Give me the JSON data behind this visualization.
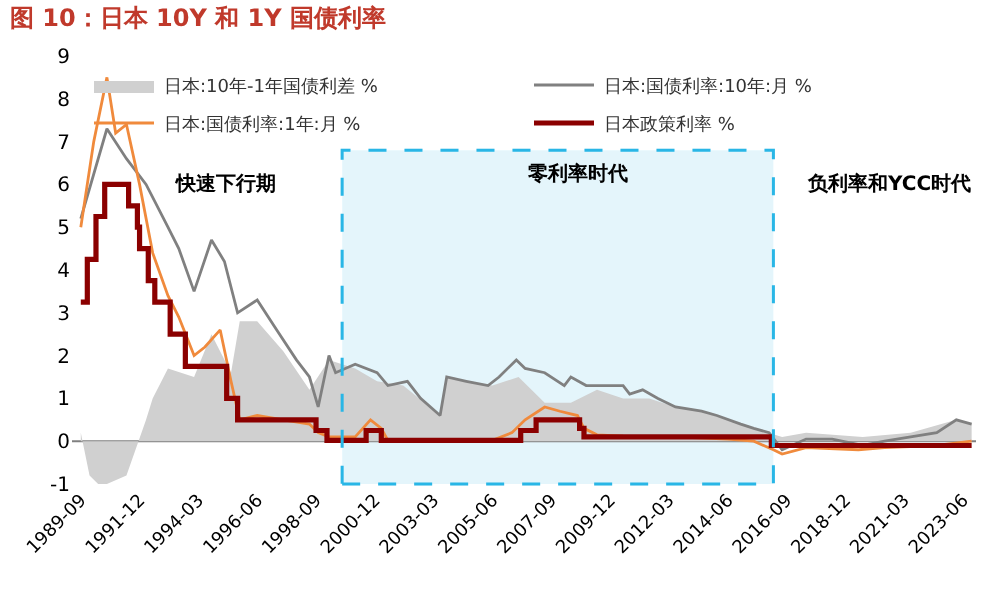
{
  "chart_data": {
    "type": "line",
    "title": "图 10：日本 10Y 和 1Y 国债利率",
    "series": [
      {
        "name": "日本:10年-1年国债利差 %",
        "type": "area",
        "color": "#d0d0d0",
        "x": [
          "1989-09",
          "1990-01",
          "1990-05",
          "1990-09",
          "1991-06",
          "1992-03",
          "1992-06",
          "1993-01",
          "1994-01",
          "1994-09",
          "1995-06",
          "1995-10",
          "1996-06",
          "1997-06",
          "1998-06",
          "1999-03",
          "2000-03",
          "2001-01",
          "2002-01",
          "2003-06",
          "2003-09",
          "2004-06",
          "2005-06",
          "2006-06",
          "2007-06",
          "2008-06",
          "2009-06",
          "2010-06",
          "2011-06",
          "2012-06",
          "2013-06",
          "2014-06",
          "2015-06",
          "2016-07",
          "2017-06",
          "2019-08",
          "2021-06",
          "2023-03",
          "2023-10"
        ],
        "values": [
          0.2,
          -0.8,
          -1.0,
          -1.0,
          -0.8,
          0.5,
          1.0,
          1.7,
          1.5,
          2.5,
          1.6,
          2.8,
          2.8,
          2.1,
          1.2,
          1.9,
          1.7,
          1.4,
          1.3,
          0.6,
          1.5,
          1.4,
          1.3,
          1.5,
          0.9,
          0.9,
          1.2,
          1.0,
          1.0,
          0.8,
          0.7,
          0.5,
          0.3,
          0.1,
          0.2,
          0.1,
          0.2,
          0.5,
          0.4
        ]
      },
      {
        "name": "日本:国债利率:10年:月 %",
        "color": "#808080",
        "x": [
          "1989-09",
          "1990-09",
          "1991-06",
          "1992-03",
          "1993-01",
          "1993-06",
          "1994-01",
          "1994-09",
          "1995-03",
          "1995-09",
          "1996-06",
          "1997-03",
          "1997-12",
          "1998-06",
          "1998-10",
          "1999-03",
          "1999-06",
          "2000-03",
          "2001-01",
          "2001-06",
          "2002-03",
          "2002-09",
          "2003-06",
          "2003-09",
          "2004-06",
          "2005-04",
          "2005-09",
          "2006-05",
          "2006-09",
          "2007-06",
          "2008-03",
          "2008-06",
          "2009-01",
          "2010-06",
          "2010-09",
          "2011-03",
          "2011-10",
          "2012-06",
          "2013-06",
          "2014-01",
          "2014-12",
          "2015-06",
          "2016-01",
          "2016-07",
          "2017-06",
          "2018-06",
          "2019-08",
          "2020-06",
          "2021-06",
          "2022-06",
          "2023-03",
          "2023-10"
        ],
        "values": [
          5.2,
          7.3,
          6.6,
          6.0,
          5.0,
          4.5,
          3.5,
          4.7,
          4.2,
          3.0,
          3.3,
          2.6,
          1.9,
          1.5,
          0.8,
          2.0,
          1.6,
          1.8,
          1.6,
          1.3,
          1.4,
          1.0,
          0.6,
          1.5,
          1.4,
          1.3,
          1.5,
          1.9,
          1.7,
          1.6,
          1.3,
          1.5,
          1.3,
          1.3,
          1.1,
          1.2,
          1.0,
          0.8,
          0.7,
          0.6,
          0.4,
          0.3,
          0.2,
          -0.2,
          0.05,
          0.05,
          -0.1,
          0.0,
          0.1,
          0.2,
          0.5,
          0.4
        ]
      },
      {
        "name": "日本:国债利率:1年:月 %",
        "color": "#f08a3c",
        "x": [
          "1989-09",
          "1990-03",
          "1990-09",
          "1991-01",
          "1991-06",
          "1991-12",
          "1992-06",
          "1993-01",
          "1993-06",
          "1994-01",
          "1994-06",
          "1995-01",
          "1995-06",
          "1995-10",
          "1996-06",
          "1997-06",
          "1998-06",
          "1998-10",
          "1999-03",
          "2000-03",
          "2000-10",
          "2001-03",
          "2001-06",
          "2003-06",
          "2005-06",
          "2006-03",
          "2006-09",
          "2007-06",
          "2008-01",
          "2008-09",
          "2008-12",
          "2009-06",
          "2010-06",
          "2012-06",
          "2014-06",
          "2015-06",
          "2016-03",
          "2016-07",
          "2017-06",
          "2019-06",
          "2020-06",
          "2022-06",
          "2023-10"
        ],
        "values": [
          5.0,
          7.0,
          8.5,
          7.2,
          7.4,
          6.0,
          4.4,
          3.4,
          2.9,
          2.0,
          2.2,
          2.6,
          1.4,
          0.5,
          0.6,
          0.5,
          0.4,
          0.2,
          0.1,
          0.1,
          0.5,
          0.3,
          0.02,
          0.02,
          0.02,
          0.2,
          0.5,
          0.8,
          0.7,
          0.6,
          0.3,
          0.15,
          0.12,
          0.1,
          0.05,
          0.0,
          -0.2,
          -0.3,
          -0.15,
          -0.2,
          -0.15,
          -0.1,
          0.0
        ]
      },
      {
        "name": "日本政策利率 %",
        "type": "step",
        "color": "#8b0000",
        "x": [
          "1989-09",
          "1989-12",
          "1990-04",
          "1990-08",
          "1991-07",
          "1991-11",
          "1991-12",
          "1992-04",
          "1992-07",
          "1993-02",
          "1993-09",
          "1995-04",
          "1995-09",
          "1998-09",
          "1999-02",
          "2000-08",
          "2001-03",
          "2006-07",
          "2007-02",
          "2008-10",
          "2008-12",
          "2016-02",
          "2023-10"
        ],
        "values": [
          3.25,
          4.25,
          5.25,
          6.0,
          5.5,
          5.0,
          4.5,
          3.75,
          3.25,
          2.5,
          1.75,
          1.0,
          0.5,
          0.25,
          0.02,
          0.25,
          0.02,
          0.25,
          0.5,
          0.3,
          0.1,
          -0.1,
          -0.1
        ]
      }
    ],
    "xlim": [
      "1989-05",
      "2023-12"
    ],
    "xticks": [
      "1989-09",
      "1991-12",
      "1994-03",
      "1996-06",
      "1998-09",
      "2000-12",
      "2003-03",
      "2005-06",
      "2007-09",
      "2009-12",
      "2012-03",
      "2014-06",
      "2016-09",
      "2018-12",
      "2021-03",
      "2023-06"
    ],
    "ylim": [
      -1,
      9
    ],
    "yticks": [
      -1,
      0,
      1,
      2,
      3,
      4,
      5,
      6,
      7,
      8,
      9
    ],
    "bands": [
      {
        "axis": "x",
        "from": "1999-09",
        "to": "2016-03",
        "label": "零利率时代",
        "color": "#29b6e6"
      }
    ],
    "ref_lines": [
      {
        "axis": "y",
        "value": 0,
        "color": "#808080"
      }
    ],
    "annotations": [
      "快速下行期",
      "负利率和YCC时代"
    ],
    "legend": "top"
  }
}
